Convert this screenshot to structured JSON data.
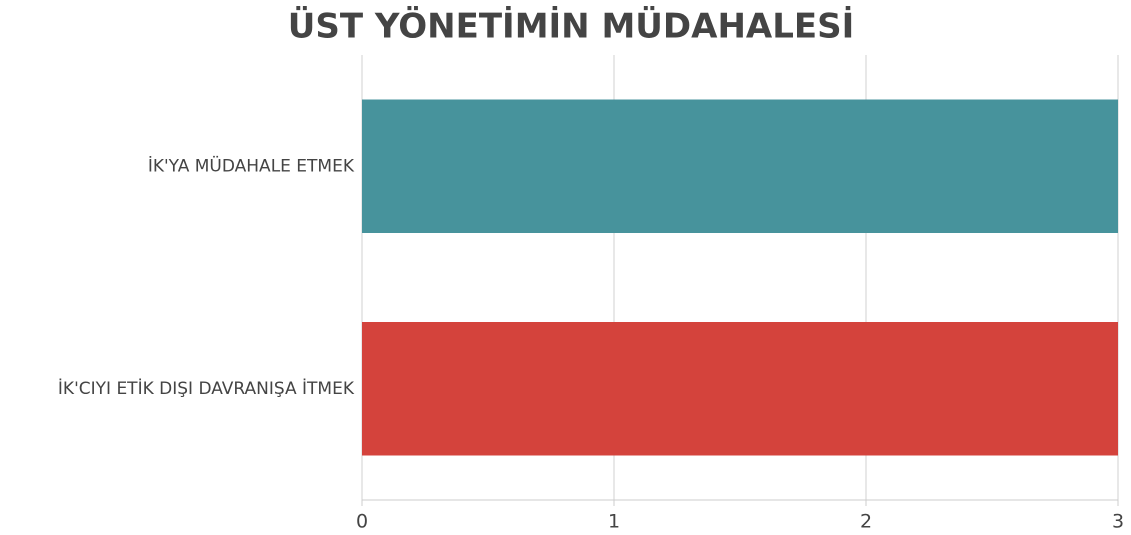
{
  "chart_data": {
    "type": "barh",
    "title": "ÜST YÖNETİMİN MÜDAHALESİ",
    "categories": [
      "İK'YA MÜDAHALE ETMEK",
      "İK'CIYI ETİK DIŞI DAVRANIŞA İTMEK"
    ],
    "values": [
      3,
      3
    ],
    "colors": [
      "#47939c",
      "#d4433c"
    ],
    "xlim": [
      0,
      3
    ],
    "xticks": [
      0,
      1,
      2,
      3
    ],
    "grid": true
  }
}
